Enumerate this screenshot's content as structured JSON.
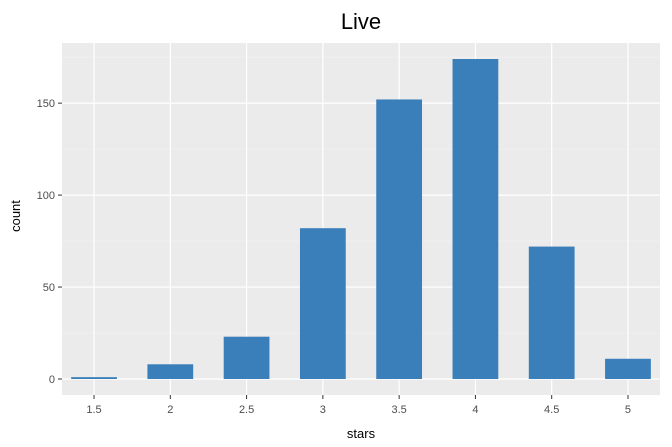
{
  "chart_data": {
    "type": "bar",
    "title": "Live",
    "xlabel": "stars",
    "ylabel": "count",
    "categories": [
      "1.5",
      "2",
      "2.5",
      "3",
      "3.5",
      "4",
      "4.5",
      "5"
    ],
    "x": [
      1.5,
      2,
      2.5,
      3,
      3.5,
      4,
      4.5,
      5
    ],
    "values": [
      1,
      8,
      23,
      82,
      152,
      174,
      72,
      11
    ],
    "xlim": [
      1.29,
      5.21
    ],
    "ylim": [
      -8.7,
      182.7
    ],
    "yticks": [
      0,
      50,
      100,
      150
    ],
    "ytick_labels": [
      "0",
      "50",
      "100",
      "150"
    ],
    "grid": true,
    "legend": "none",
    "colors": {
      "bar": "#3a7fba",
      "panel": "#ebebeb",
      "grid_major": "#ffffff",
      "grid_minor": "#f3f3f3"
    }
  }
}
